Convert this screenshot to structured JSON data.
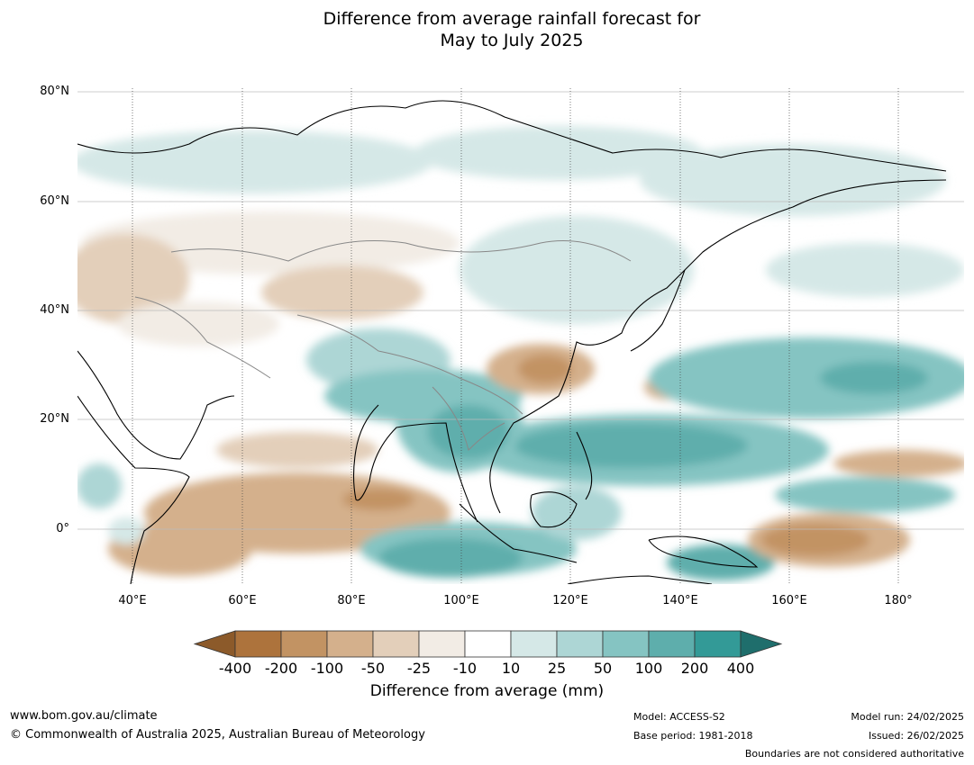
{
  "title": {
    "line1": "Difference from average rainfall forecast for",
    "line2": "May to July 2025"
  },
  "map": {
    "projection": "equirectangular",
    "lon_range": [
      30,
      192
    ],
    "lat_range": [
      -10,
      80
    ],
    "lat_ticks": [
      "80°N",
      "60°N",
      "40°N",
      "20°N",
      "0°"
    ],
    "lon_ticks": [
      "40°E",
      "60°E",
      "80°E",
      "100°E",
      "120°E",
      "140°E",
      "160°E",
      "180°"
    ],
    "ocean_color": "#ffffff",
    "coastline_color": "#000000",
    "border_color": "#888888",
    "anomaly_regions": [
      {
        "name": "Eastern Indian Ocean / Maritime Continent wet",
        "category": "100 to 200 mm"
      },
      {
        "name": "Tropical West Pacific wet",
        "category": "100 to 200 mm"
      },
      {
        "name": "Equatorial Indian Ocean dry",
        "category": "-100 to -50 mm"
      },
      {
        "name": "Central Pacific near 160°E-180° dry",
        "category": "-200 to -100 mm"
      },
      {
        "name": "Eastern China dry",
        "category": "-100 to -50 mm"
      },
      {
        "name": "Northern Russia wet",
        "category": "10 to 25 mm"
      },
      {
        "name": "Central Asia dry",
        "category": "-25 to -10 mm"
      }
    ]
  },
  "colorbar": {
    "ticks": [
      "-400",
      "-200",
      "-100",
      "-50",
      "-25",
      "-10",
      "10",
      "25",
      "50",
      "100",
      "200",
      "400"
    ],
    "colors": [
      "#8c5a2a",
      "#ad733c",
      "#c29363",
      "#d4b08c",
      "#e3cfba",
      "#f2ece5",
      "#ffffff",
      "#d5e8e7",
      "#add6d5",
      "#85c4c2",
      "#5eaeac",
      "#339a97",
      "#1f6e6c"
    ],
    "label": "Difference from average (mm)"
  },
  "footer": {
    "url": "www.bom.gov.au/climate",
    "copyright": "© Commonwealth of Australia 2025, Australian Bureau of Meteorology",
    "model": "Model: ACCESS-S2",
    "base_period": "Base period: 1981-2018",
    "model_run": "Model run: 24/02/2025",
    "issued": "Issued: 26/02/2025",
    "disclaimer": "Boundaries are not considered authoritative"
  }
}
